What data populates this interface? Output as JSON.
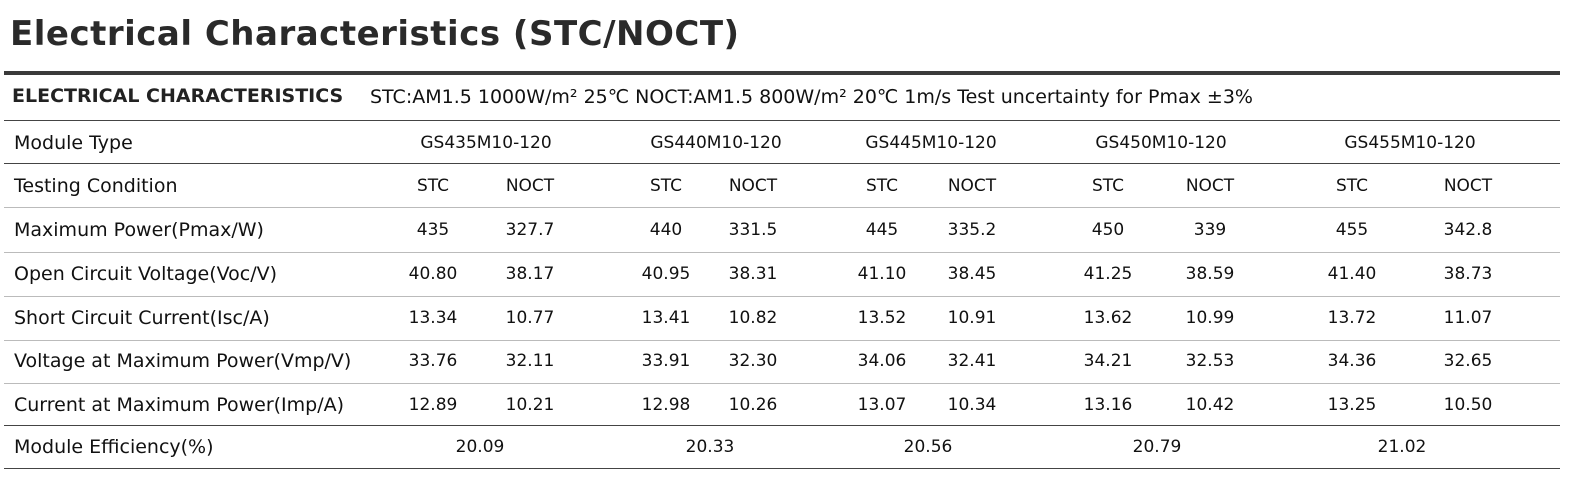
{
  "title": "Electrical Characteristics (STC/NOCT)",
  "table": {
    "caption": "ELECTRICAL CHARACTERISTICS",
    "conditions": "STC:AM1.5 1000W/m² 25℃   NOCT:AM1.5 800W/m² 20℃  1m/s  Test uncertainty for Pmax ±3%",
    "rows": [
      {
        "label": "Module Type",
        "cells": [
          "GS435M10-120",
          "GS440M10-120",
          "GS445M10-120",
          "GS450M10-120",
          "GS455M10-120"
        ]
      },
      {
        "label": "Testing Condition",
        "cells": [
          "STC",
          "NOCT",
          "STC",
          "NOCT",
          "STC",
          "NOCT",
          "STC",
          "NOCT",
          "STC",
          "NOCT"
        ]
      },
      {
        "label": "Maximum Power(Pmax/W)",
        "cells": [
          "435",
          "327.7",
          "440",
          "331.5",
          "445",
          "335.2",
          "450",
          "339",
          "455",
          "342.8"
        ]
      },
      {
        "label": "Open Circuit Voltage(Voc/V)",
        "cells": [
          "40.80",
          "38.17",
          "40.95",
          "38.31",
          "41.10",
          "38.45",
          "41.25",
          "38.59",
          "41.40",
          "38.73"
        ]
      },
      {
        "label": "Short Circuit Current(Isc/A)",
        "cells": [
          "13.34",
          "10.77",
          "13.41",
          "10.82",
          "13.52",
          "10.91",
          "13.62",
          "10.99",
          "13.72",
          "11.07"
        ]
      },
      {
        "label": "Voltage at Maximum Power(Vmp/V)",
        "cells": [
          "33.76",
          "32.11",
          "33.91",
          "32.30",
          "34.06",
          "32.41",
          "34.21",
          "32.53",
          "34.36",
          "32.65"
        ]
      },
      {
        "label": "Current at Maximum Power(Imp/A)",
        "cells": [
          "12.89",
          "10.21",
          "12.98",
          "10.26",
          "13.07",
          "10.34",
          "13.16",
          "10.42",
          "13.25",
          "10.50"
        ]
      },
      {
        "label": "Module Efficiency(%)",
        "cells": [
          "20.09",
          "20.33",
          "20.56",
          "20.79",
          "21.02"
        ]
      }
    ]
  }
}
